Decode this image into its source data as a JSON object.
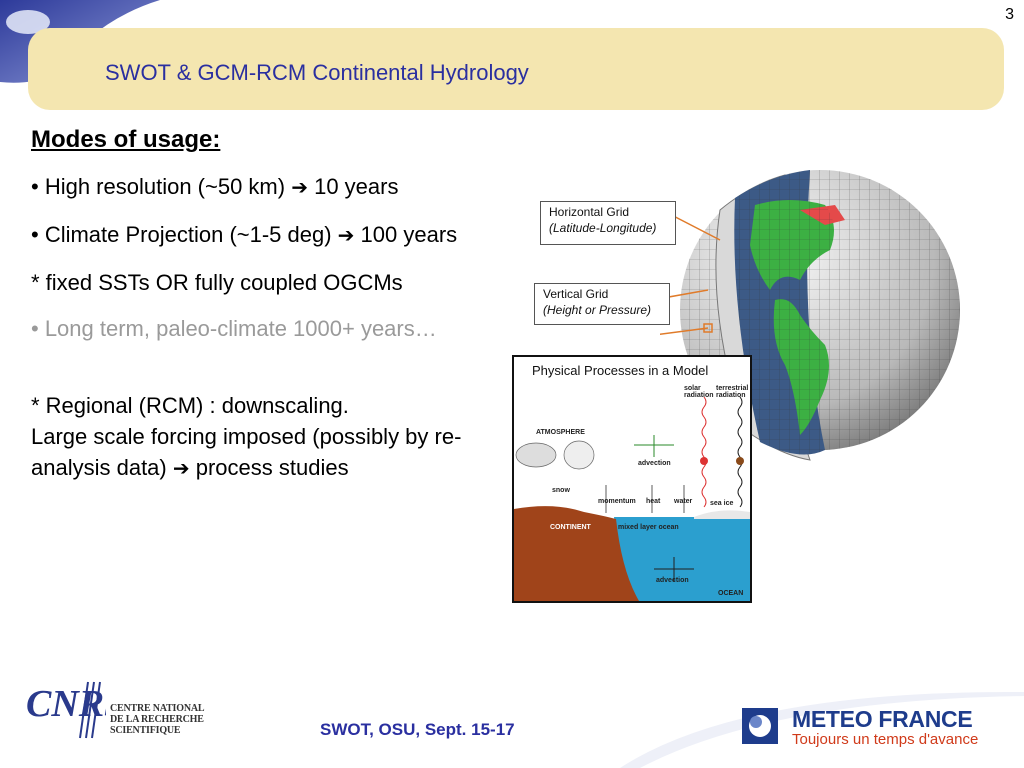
{
  "header": {
    "slide_number": "3",
    "title": "SWOT & GCM-RCM Continental Hydrology"
  },
  "content": {
    "heading": "Modes of usage:",
    "line1_text": "• High resolution (~50 km) ",
    "line1_after": " 10 years",
    "line2_text": "• Climate Projection (~1-5 deg) ",
    "line2_after": " 100 years",
    "line3": "* fixed SSTs OR fully coupled OGCMs",
    "line4": "• Long term, paleo-climate 1000+ years…",
    "line5a": "* Regional (RCM) : downscaling.",
    "line5b": "Large scale forcing imposed (possibly by re-analysis data) ",
    "line5c": " process studies",
    "arrow": "➔"
  },
  "figure": {
    "horizontal_grid": "Horizontal Grid",
    "horizontal_grid_sub": "(Latitude-Longitude)",
    "vertical_grid": "Vertical Grid",
    "vertical_grid_sub": "(Height or Pressure)",
    "physical_title": "Physical Processes in a Model",
    "labels": {
      "solar_radiation": "solar radiation",
      "terrestrial_radiation": "terrestrial radiation",
      "atmosphere": "ATMOSPHERE",
      "advection_top": "advection",
      "snow": "snow",
      "momentum": "momentum",
      "heat": "heat",
      "water": "water",
      "sea_ice": "sea ice",
      "continent": "CONTINENT",
      "mixed_layer": "mixed layer ocean",
      "advection_bottom": "advection",
      "ocean": "OCEAN"
    }
  },
  "footer": {
    "text": "SWOT, OSU, Sept. 15-17",
    "cnrs_name_1": "CENTRE NATIONAL",
    "cnrs_name_2": "DE LA RECHERCHE",
    "cnrs_name_3": "SCIENTIFIQUE",
    "cnrs_logo_text": "CNRS",
    "meteo_name": "METEO FRANCE",
    "meteo_tagline": "Toujours un temps d'avance"
  },
  "colors": {
    "title": "#2a2fa0",
    "band": "#f4e6b0",
    "ocean": "#2b9fcf",
    "continent": "#a0441a",
    "land_green": "#3cb043"
  }
}
